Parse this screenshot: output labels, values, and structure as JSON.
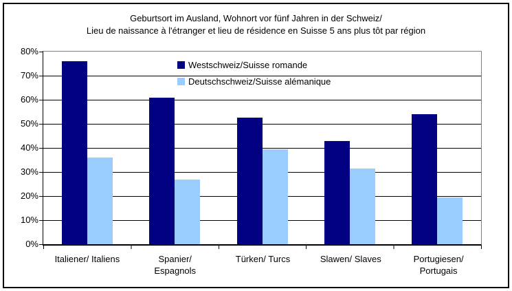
{
  "window": {
    "background": "#FFFFFF",
    "frame_border_color": "#000000",
    "plot_border_color": "#808080",
    "axis_color": "#000000"
  },
  "chart_data": {
    "type": "bar",
    "title_lines": [
      "Geburtsort im Ausland, Wohnort vor fünf Jahren in der Schweiz/",
      "Lieu de naissance à l'étranger et lieu de résidence en Suisse 5 ans plus tôt par région"
    ],
    "categories": [
      "Italiener/ Italiens",
      "Spanier/ Espagnols",
      "Türken/ Turcs",
      "Slawen/ Slaves",
      "Portugiesen/ Portugais"
    ],
    "x_tick_lines": [
      [
        "Italiener/ Italiens"
      ],
      [
        "Spanier/",
        "Espagnols"
      ],
      [
        "Türken/ Turcs"
      ],
      [
        "Slawen/ Slaves"
      ],
      [
        "Portugiesen/",
        "Portugais"
      ]
    ],
    "series": [
      {
        "name": "Westschweiz/Suisse romande",
        "color": "#000080",
        "values": [
          76,
          61,
          52.5,
          43,
          54
        ]
      },
      {
        "name": "Deutschschweiz/Suisse alémanique",
        "color": "#99CCFF",
        "values": [
          36,
          27,
          39.5,
          31.5,
          19.5
        ]
      }
    ],
    "y_ticks": [
      "0%",
      "10%",
      "20%",
      "30%",
      "40%",
      "50%",
      "60%",
      "70%",
      "80%"
    ],
    "ylim": [
      0,
      80
    ],
    "unit": "percent",
    "grid": true,
    "legend_position": "top-center-inside"
  }
}
